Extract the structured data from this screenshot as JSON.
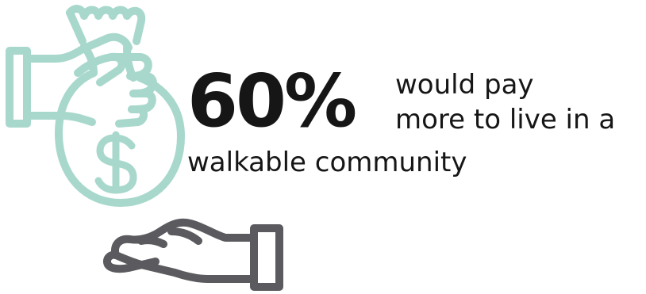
{
  "infographic": {
    "stat_value": "60%",
    "text_line_1": "would pay",
    "text_line_2": "more to live in a",
    "text_line_3": "walkable community"
  },
  "icons": {
    "money_bag": "money-bag-icon",
    "dollar_sign": "dollar-sign-icon",
    "giving_hand": "giving-hand-icon",
    "receiving_hand": "receiving-hand-icon"
  },
  "colors": {
    "teal_icon": "#a8d8cc",
    "gray_icon": "#5b5b5f",
    "text": "#161616",
    "background": "#ffffff"
  }
}
